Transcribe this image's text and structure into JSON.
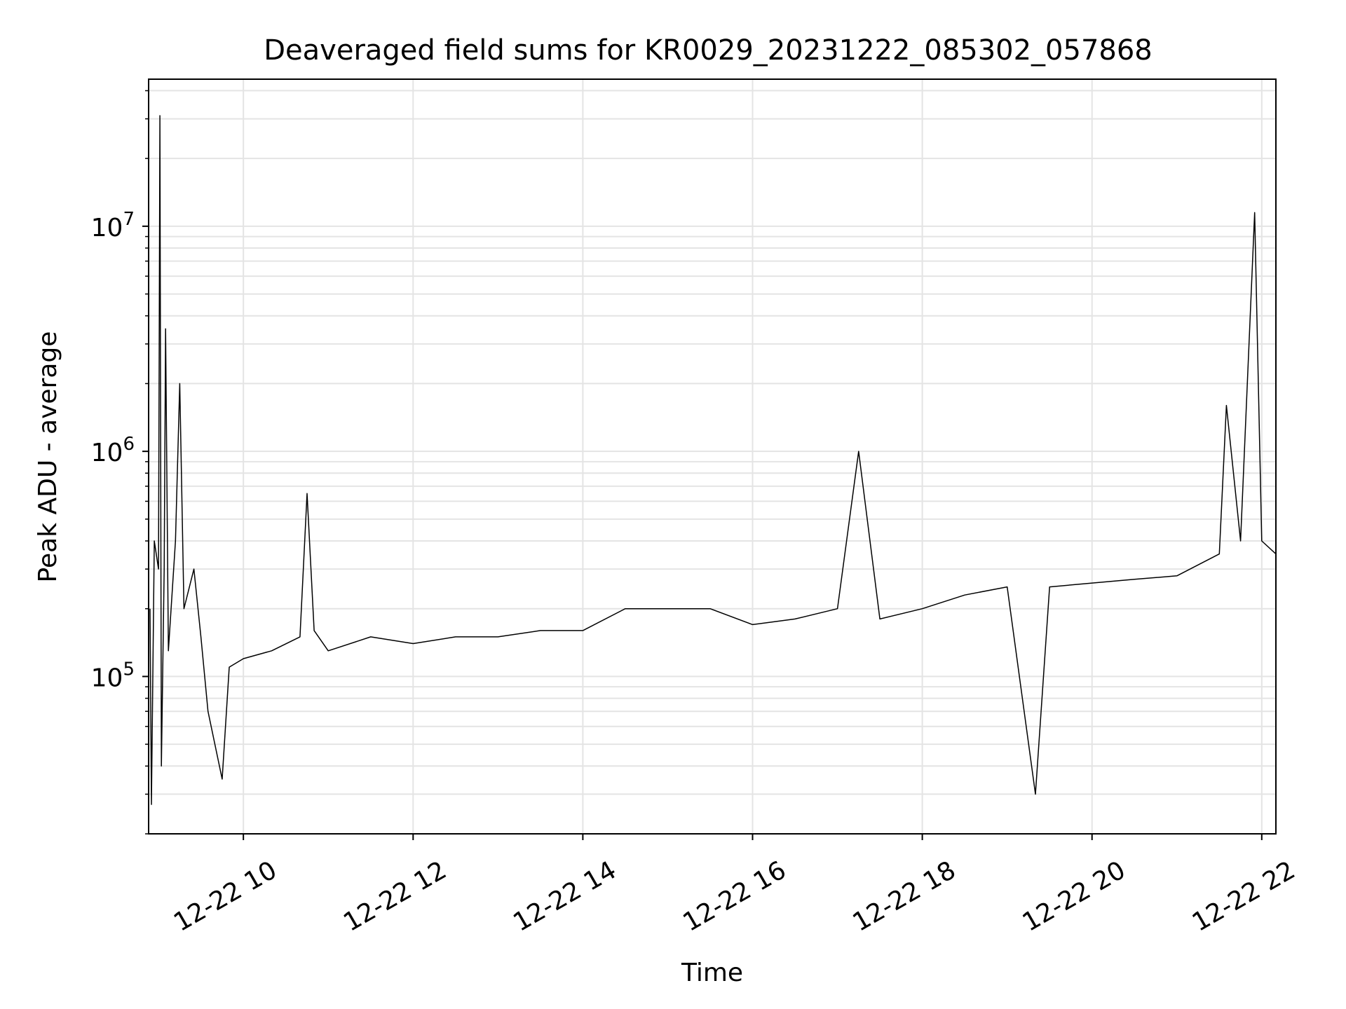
{
  "chart_data": {
    "type": "line",
    "title": "Deaveraged field sums for KR0029_20231222_085302_057868",
    "xlabel": "Time",
    "ylabel": "Peak ADU - average",
    "x_range": [
      "2023-12-22T08:53",
      "2023-12-22T22:10"
    ],
    "y_scale": "log",
    "ylim": [
      20000,
      45000000
    ],
    "grid": true,
    "line_color": "#000000",
    "x_ticks": [
      {
        "t": "2023-12-22T10:00",
        "label": "12-22 10"
      },
      {
        "t": "2023-12-22T12:00",
        "label": "12-22 12"
      },
      {
        "t": "2023-12-22T14:00",
        "label": "12-22 14"
      },
      {
        "t": "2023-12-22T16:00",
        "label": "12-22 16"
      },
      {
        "t": "2023-12-22T18:00",
        "label": "12-22 18"
      },
      {
        "t": "2023-12-22T20:00",
        "label": "12-22 20"
      },
      {
        "t": "2023-12-22T22:00",
        "label": "12-22 22"
      }
    ],
    "y_ticks": [
      {
        "value": 100000,
        "base": "10",
        "exp": "5"
      },
      {
        "value": 1000000,
        "base": "10",
        "exp": "6"
      },
      {
        "value": 10000000,
        "base": "10",
        "exp": "7"
      }
    ],
    "series": [
      {
        "points": [
          [
            "2023-12-22T08:54",
            200000
          ],
          [
            "2023-12-22T08:55",
            27000
          ],
          [
            "2023-12-22T08:57",
            400000
          ],
          [
            "2023-12-22T09:00",
            300000
          ],
          [
            "2023-12-22T09:01",
            31000000
          ],
          [
            "2023-12-22T09:02",
            40000
          ],
          [
            "2023-12-22T09:04",
            300000
          ],
          [
            "2023-12-22T09:05",
            3500000
          ],
          [
            "2023-12-22T09:07",
            130000
          ],
          [
            "2023-12-22T09:12",
            400000
          ],
          [
            "2023-12-22T09:15",
            2000000
          ],
          [
            "2023-12-22T09:18",
            200000
          ],
          [
            "2023-12-22T09:25",
            300000
          ],
          [
            "2023-12-22T09:30",
            150000
          ],
          [
            "2023-12-22T09:35",
            70000
          ],
          [
            "2023-12-22T09:45",
            35000
          ],
          [
            "2023-12-22T09:50",
            110000
          ],
          [
            "2023-12-22T10:00",
            120000
          ],
          [
            "2023-12-22T10:20",
            130000
          ],
          [
            "2023-12-22T10:40",
            150000
          ],
          [
            "2023-12-22T10:45",
            650000
          ],
          [
            "2023-12-22T10:50",
            160000
          ],
          [
            "2023-12-22T11:00",
            130000
          ],
          [
            "2023-12-22T11:30",
            150000
          ],
          [
            "2023-12-22T12:00",
            140000
          ],
          [
            "2023-12-22T12:30",
            150000
          ],
          [
            "2023-12-22T13:00",
            150000
          ],
          [
            "2023-12-22T13:30",
            160000
          ],
          [
            "2023-12-22T14:00",
            160000
          ],
          [
            "2023-12-22T14:30",
            200000
          ],
          [
            "2023-12-22T15:00",
            200000
          ],
          [
            "2023-12-22T15:30",
            200000
          ],
          [
            "2023-12-22T16:00",
            170000
          ],
          [
            "2023-12-22T16:30",
            180000
          ],
          [
            "2023-12-22T17:00",
            200000
          ],
          [
            "2023-12-22T17:15",
            1000000
          ],
          [
            "2023-12-22T17:30",
            180000
          ],
          [
            "2023-12-22T18:00",
            200000
          ],
          [
            "2023-12-22T18:30",
            230000
          ],
          [
            "2023-12-22T19:00",
            250000
          ],
          [
            "2023-12-22T19:20",
            30000
          ],
          [
            "2023-12-22T19:30",
            250000
          ],
          [
            "2023-12-22T20:00",
            260000
          ],
          [
            "2023-12-22T20:30",
            270000
          ],
          [
            "2023-12-22T21:00",
            280000
          ],
          [
            "2023-12-22T21:30",
            350000
          ],
          [
            "2023-12-22T21:35",
            1600000
          ],
          [
            "2023-12-22T21:45",
            400000
          ],
          [
            "2023-12-22T21:55",
            11500000
          ],
          [
            "2023-12-22T22:00",
            400000
          ],
          [
            "2023-12-22T22:10",
            350000
          ]
        ]
      }
    ]
  }
}
